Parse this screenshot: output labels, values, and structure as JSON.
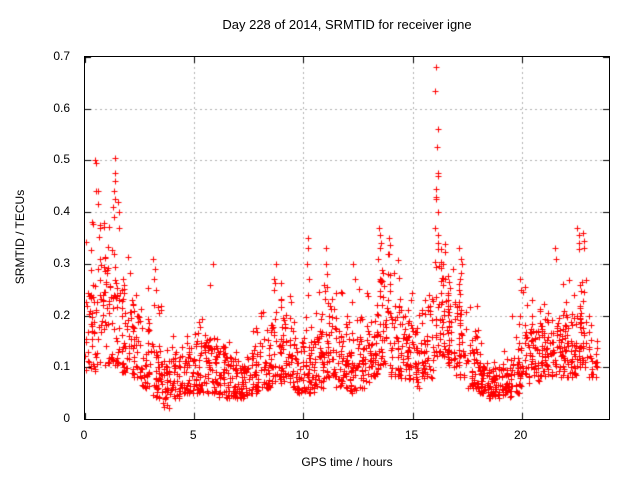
{
  "chart_data": {
    "type": "scatter",
    "title": "Day 228 of 2014, SRMTID for receiver igne",
    "xlabel": "GPS time / hours",
    "ylabel": "SRMTID / TECUs",
    "xlim": [
      0,
      24
    ],
    "ylim": [
      0,
      0.7
    ],
    "xticks": [
      {
        "v": 0,
        "label": "0"
      },
      {
        "v": 5,
        "label": "5"
      },
      {
        "v": 10,
        "label": "10"
      },
      {
        "v": 15,
        "label": "15"
      },
      {
        "v": 20,
        "label": "20"
      }
    ],
    "yticks": [
      {
        "v": 0,
        "label": "0"
      },
      {
        "v": 0.1,
        "label": "0.1"
      },
      {
        "v": 0.2,
        "label": "0.2"
      },
      {
        "v": 0.3,
        "label": "0.3"
      },
      {
        "v": 0.4,
        "label": "0.4"
      },
      {
        "v": 0.5,
        "label": "0.5"
      },
      {
        "v": 0.6,
        "label": "0.6"
      },
      {
        "v": 0.7,
        "label": "0.7"
      }
    ],
    "grid": true,
    "legend": "none",
    "marker": "plus",
    "colors": {
      "marker": "#ff0000",
      "grid": "#b0b0b0",
      "border": "#000000",
      "background": "#ffffff",
      "text": "#000000"
    },
    "series_name": "SRMTID",
    "bin_width": 0.5,
    "t_max": 23.45,
    "envelope_format": [
      "t_start_hours",
      "cloud_low_TECU",
      "cloud_high_TECU",
      "outlier_max_TECU",
      "point_count"
    ],
    "envelope": [
      [
        0.0,
        0.09,
        0.33,
        0.39,
        46
      ],
      [
        0.5,
        0.1,
        0.3,
        0.38,
        40
      ],
      [
        1.0,
        0.1,
        0.3,
        0.4,
        42
      ],
      [
        1.5,
        0.09,
        0.27,
        0.35,
        40
      ],
      [
        2.0,
        0.08,
        0.22,
        0.33,
        40
      ],
      [
        2.5,
        0.06,
        0.18,
        0.26,
        38
      ],
      [
        3.0,
        0.04,
        0.14,
        0.22,
        40
      ],
      [
        3.5,
        0.02,
        0.11,
        0.16,
        40
      ],
      [
        4.0,
        0.04,
        0.12,
        0.16,
        42
      ],
      [
        4.5,
        0.05,
        0.13,
        0.18,
        42
      ],
      [
        5.0,
        0.05,
        0.15,
        0.22,
        44
      ],
      [
        5.5,
        0.05,
        0.14,
        0.2,
        42
      ],
      [
        6.0,
        0.04,
        0.14,
        0.18,
        44
      ],
      [
        6.5,
        0.04,
        0.12,
        0.16,
        44
      ],
      [
        7.0,
        0.04,
        0.12,
        0.16,
        44
      ],
      [
        7.5,
        0.05,
        0.13,
        0.18,
        44
      ],
      [
        8.0,
        0.06,
        0.16,
        0.22,
        44
      ],
      [
        8.5,
        0.07,
        0.22,
        0.28,
        44
      ],
      [
        9.0,
        0.07,
        0.2,
        0.26,
        42
      ],
      [
        9.5,
        0.05,
        0.14,
        0.2,
        42
      ],
      [
        10.0,
        0.05,
        0.13,
        0.22,
        44
      ],
      [
        10.5,
        0.06,
        0.17,
        0.26,
        46
      ],
      [
        11.0,
        0.08,
        0.22,
        0.3,
        44
      ],
      [
        11.5,
        0.06,
        0.18,
        0.26,
        42
      ],
      [
        12.0,
        0.05,
        0.16,
        0.24,
        42
      ],
      [
        12.5,
        0.06,
        0.18,
        0.26,
        42
      ],
      [
        13.0,
        0.08,
        0.22,
        0.3,
        44
      ],
      [
        13.5,
        0.1,
        0.27,
        0.36,
        44
      ],
      [
        14.0,
        0.08,
        0.24,
        0.31,
        44
      ],
      [
        14.5,
        0.07,
        0.2,
        0.3,
        42
      ],
      [
        15.0,
        0.06,
        0.18,
        0.26,
        42
      ],
      [
        15.5,
        0.08,
        0.22,
        0.28,
        42
      ],
      [
        16.0,
        0.12,
        0.3,
        0.35,
        46
      ],
      [
        16.5,
        0.1,
        0.25,
        0.32,
        42
      ],
      [
        17.0,
        0.08,
        0.22,
        0.3,
        42
      ],
      [
        17.5,
        0.06,
        0.16,
        0.22,
        42
      ],
      [
        18.0,
        0.05,
        0.12,
        0.16,
        44
      ],
      [
        18.5,
        0.04,
        0.1,
        0.14,
        46
      ],
      [
        19.0,
        0.04,
        0.1,
        0.14,
        44
      ],
      [
        19.5,
        0.05,
        0.13,
        0.2,
        42
      ],
      [
        20.0,
        0.07,
        0.18,
        0.26,
        42
      ],
      [
        20.5,
        0.07,
        0.17,
        0.24,
        42
      ],
      [
        21.0,
        0.08,
        0.19,
        0.27,
        44
      ],
      [
        21.5,
        0.08,
        0.2,
        0.3,
        44
      ],
      [
        22.0,
        0.08,
        0.2,
        0.28,
        44
      ],
      [
        22.5,
        0.1,
        0.25,
        0.34,
        46
      ],
      [
        23.0,
        0.08,
        0.18,
        0.26,
        26
      ]
    ],
    "spikes": [
      {
        "t": 0.45,
        "values": [
          0.5,
          0.495,
          0.44
        ]
      },
      {
        "t": 0.65,
        "values": [
          0.44,
          0.415,
          0.37
        ]
      },
      {
        "t": 1.35,
        "values": [
          0.505,
          0.475,
          0.46,
          0.44,
          0.425,
          0.41,
          0.39
        ]
      },
      {
        "t": 1.55,
        "values": [
          0.42,
          0.4,
          0.37
        ]
      },
      {
        "t": 3.2,
        "values": [
          0.31,
          0.29,
          0.27,
          0.25,
          0.22
        ]
      },
      {
        "t": 5.8,
        "values": [
          0.3,
          0.26
        ]
      },
      {
        "t": 8.7,
        "values": [
          0.3,
          0.27,
          0.25
        ]
      },
      {
        "t": 10.2,
        "values": [
          0.35,
          0.33,
          0.3,
          0.27,
          0.24
        ]
      },
      {
        "t": 11.0,
        "values": [
          0.33,
          0.3,
          0.28
        ]
      },
      {
        "t": 12.35,
        "values": [
          0.3,
          0.27
        ]
      },
      {
        "t": 13.5,
        "values": [
          0.37,
          0.355,
          0.34,
          0.33,
          0.31
        ]
      },
      {
        "t": 13.85,
        "values": [
          0.35,
          0.32
        ]
      },
      {
        "t": 16.1,
        "values": [
          0.68,
          0.635,
          0.56,
          0.525,
          0.475,
          0.47,
          0.445,
          0.43,
          0.425,
          0.4,
          0.37,
          0.355,
          0.34
        ]
      },
      {
        "t": 17.2,
        "values": [
          0.33,
          0.31,
          0.3,
          0.27,
          0.25
        ]
      },
      {
        "t": 20.0,
        "values": [
          0.27,
          0.25
        ]
      },
      {
        "t": 21.55,
        "values": [
          0.33,
          0.31
        ]
      },
      {
        "t": 22.6,
        "values": [
          0.37,
          0.355,
          0.34
        ]
      },
      {
        "t": 22.85,
        "values": [
          0.36,
          0.345,
          0.33
        ]
      }
    ],
    "seed": 1402282
  }
}
